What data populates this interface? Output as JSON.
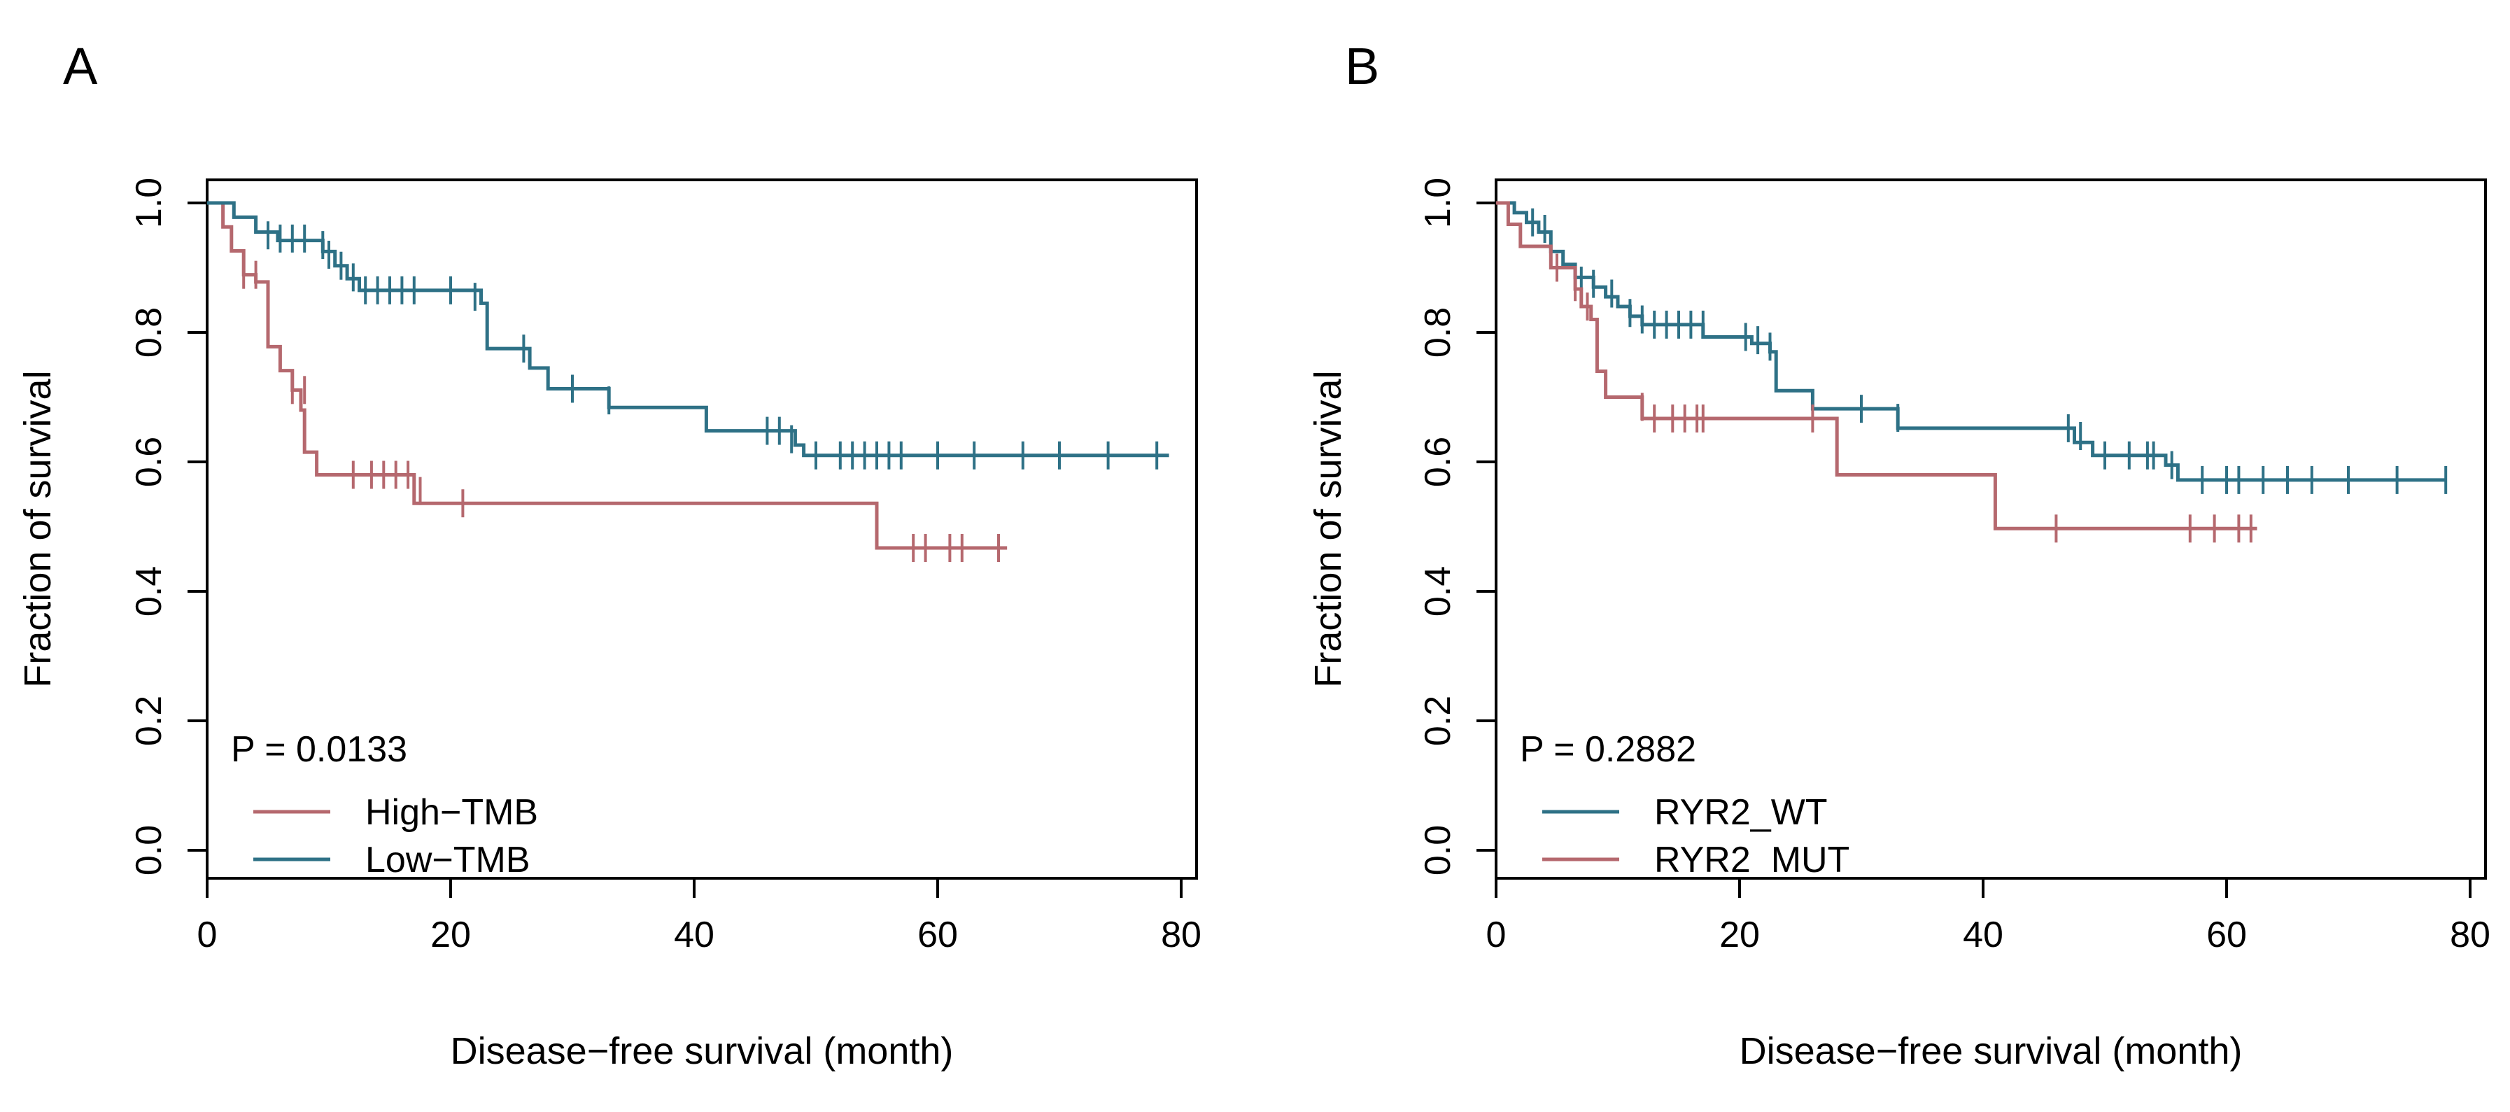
{
  "chart_data": [
    {
      "panel": "A",
      "type": "line",
      "title": "",
      "xlabel": "Disease−free survival (month)",
      "ylabel": "Fraction of survival",
      "xlim": [
        0,
        80
      ],
      "ylim": [
        0,
        1
      ],
      "xticks": [
        "0",
        "20",
        "40",
        "60",
        "80"
      ],
      "yticks": [
        "0.0",
        "0.2",
        "0.4",
        "0.6",
        "0.8",
        "1.0"
      ],
      "p_value": "P = 0.0133",
      "legend_placement": "bottom-left",
      "legend": [
        "High−TMB",
        "Low−TMB"
      ],
      "series": [
        {
          "name": "High−TMB",
          "color": "#B5686E",
          "steps": [
            [
              0,
              1.0
            ],
            [
              1.3,
              0.963
            ],
            [
              2,
              0.926
            ],
            [
              3,
              0.889
            ],
            [
              4,
              0.878
            ],
            [
              5,
              0.778
            ],
            [
              6,
              0.741
            ],
            [
              7,
              0.711
            ],
            [
              7.7,
              0.68
            ],
            [
              8,
              0.615
            ],
            [
              9,
              0.58
            ],
            [
              17,
              0.536
            ],
            [
              55,
              0.467
            ],
            [
              65.7,
              0.467
            ]
          ],
          "censors": [
            [
              3,
              0.889
            ],
            [
              4,
              0.889
            ],
            [
              7,
              0.711
            ],
            [
              8,
              0.711
            ],
            [
              12,
              0.58
            ],
            [
              13.5,
              0.58
            ],
            [
              14.5,
              0.58
            ],
            [
              15.5,
              0.58
            ],
            [
              16.5,
              0.58
            ],
            [
              17.5,
              0.555
            ],
            [
              21,
              0.536
            ],
            [
              58,
              0.467
            ],
            [
              59,
              0.467
            ],
            [
              61,
              0.467
            ],
            [
              62,
              0.467
            ],
            [
              65,
              0.467
            ]
          ]
        },
        {
          "name": "Low−TMB",
          "color": "#2E7186",
          "steps": [
            [
              0,
              1.0
            ],
            [
              2.2,
              0.978
            ],
            [
              4,
              0.955
            ],
            [
              5.8,
              0.942
            ],
            [
              9.5,
              0.925
            ],
            [
              10.5,
              0.903
            ],
            [
              11.5,
              0.883
            ],
            [
              12.5,
              0.865
            ],
            [
              22.5,
              0.845
            ],
            [
              23,
              0.775
            ],
            [
              26.5,
              0.745
            ],
            [
              28,
              0.713
            ],
            [
              33,
              0.684
            ],
            [
              41,
              0.648
            ],
            [
              48.3,
              0.626
            ],
            [
              49,
              0.61
            ],
            [
              79,
              0.61
            ]
          ],
          "censors": [
            [
              5,
              0.95
            ],
            [
              6,
              0.945
            ],
            [
              7,
              0.945
            ],
            [
              8,
              0.945
            ],
            [
              9.5,
              0.935
            ],
            [
              10,
              0.92
            ],
            [
              11,
              0.903
            ],
            [
              12,
              0.885
            ],
            [
              13,
              0.865
            ],
            [
              14,
              0.865
            ],
            [
              15,
              0.865
            ],
            [
              16,
              0.865
            ],
            [
              17,
              0.865
            ],
            [
              20,
              0.865
            ],
            [
              22,
              0.855
            ],
            [
              26,
              0.775
            ],
            [
              30,
              0.713
            ],
            [
              33,
              0.695
            ],
            [
              46,
              0.648
            ],
            [
              47,
              0.648
            ],
            [
              48,
              0.635
            ],
            [
              50,
              0.61
            ],
            [
              52,
              0.61
            ],
            [
              53,
              0.61
            ],
            [
              54,
              0.61
            ],
            [
              55,
              0.61
            ],
            [
              56,
              0.61
            ],
            [
              57,
              0.61
            ],
            [
              60,
              0.61
            ],
            [
              63,
              0.61
            ],
            [
              67,
              0.61
            ],
            [
              70,
              0.61
            ],
            [
              74,
              0.61
            ],
            [
              78,
              0.61
            ]
          ]
        }
      ]
    },
    {
      "panel": "B",
      "type": "line",
      "title": "",
      "xlabel": "Disease−free survival (month)",
      "ylabel": "Fraction of survival",
      "xlim": [
        0,
        80
      ],
      "ylim": [
        0,
        1
      ],
      "xticks": [
        "0",
        "20",
        "40",
        "60",
        "80"
      ],
      "yticks": [
        "0.0",
        "0.2",
        "0.4",
        "0.6",
        "0.8",
        "1.0"
      ],
      "p_value": "P = 0.2882",
      "legend_placement": "bottom-left",
      "legend": [
        "RYR2_WT",
        "RYR2_MUT"
      ],
      "series": [
        {
          "name": "RYR2_WT",
          "color": "#2E7186",
          "steps": [
            [
              0,
              1.0
            ],
            [
              1.5,
              0.985
            ],
            [
              2.5,
              0.97
            ],
            [
              3.5,
              0.955
            ],
            [
              4.5,
              0.925
            ],
            [
              5.5,
              0.905
            ],
            [
              6.5,
              0.885
            ],
            [
              8,
              0.87
            ],
            [
              9,
              0.855
            ],
            [
              10,
              0.84
            ],
            [
              11,
              0.825
            ],
            [
              12,
              0.812
            ],
            [
              17,
              0.793
            ],
            [
              21,
              0.783
            ],
            [
              22.5,
              0.77
            ],
            [
              23,
              0.71
            ],
            [
              26,
              0.682
            ],
            [
              33,
              0.652
            ],
            [
              47.5,
              0.63
            ],
            [
              49,
              0.61
            ],
            [
              55,
              0.595
            ],
            [
              56,
              0.572
            ],
            [
              78,
              0.572
            ]
          ],
          "censors": [
            [
              3,
              0.97
            ],
            [
              4,
              0.96
            ],
            [
              7,
              0.88
            ],
            [
              8,
              0.875
            ],
            [
              9.5,
              0.86
            ],
            [
              11,
              0.83
            ],
            [
              12,
              0.82
            ],
            [
              13,
              0.812
            ],
            [
              14,
              0.812
            ],
            [
              15,
              0.812
            ],
            [
              16,
              0.812
            ],
            [
              17,
              0.812
            ],
            [
              20.5,
              0.793
            ],
            [
              21.5,
              0.788
            ],
            [
              22.5,
              0.778
            ],
            [
              30,
              0.682
            ],
            [
              33,
              0.668
            ],
            [
              47,
              0.652
            ],
            [
              48,
              0.64
            ],
            [
              50,
              0.61
            ],
            [
              52,
              0.61
            ],
            [
              53.5,
              0.61
            ],
            [
              54,
              0.61
            ],
            [
              55.5,
              0.595
            ],
            [
              58,
              0.572
            ],
            [
              60,
              0.572
            ],
            [
              61,
              0.572
            ],
            [
              63,
              0.572
            ],
            [
              65,
              0.572
            ],
            [
              67,
              0.572
            ],
            [
              70,
              0.572
            ],
            [
              74,
              0.572
            ],
            [
              78,
              0.572
            ]
          ]
        },
        {
          "name": "RYR2_MUT",
          "color": "#B5686E",
          "steps": [
            [
              0,
              1.0
            ],
            [
              1,
              0.967
            ],
            [
              2,
              0.933
            ],
            [
              4.5,
              0.9
            ],
            [
              6.5,
              0.867
            ],
            [
              7,
              0.84
            ],
            [
              7.8,
              0.82
            ],
            [
              8.3,
              0.74
            ],
            [
              9,
              0.7
            ],
            [
              12,
              0.667
            ],
            [
              28,
              0.58
            ],
            [
              41,
              0.497
            ],
            [
              62.5,
              0.497
            ]
          ],
          "censors": [
            [
              5,
              0.9
            ],
            [
              6.5,
              0.87
            ],
            [
              7.5,
              0.84
            ],
            [
              12,
              0.685
            ],
            [
              13,
              0.667
            ],
            [
              14.5,
              0.667
            ],
            [
              15.5,
              0.667
            ],
            [
              16.5,
              0.667
            ],
            [
              17,
              0.667
            ],
            [
              26,
              0.667
            ],
            [
              46,
              0.497
            ],
            [
              57,
              0.497
            ],
            [
              59,
              0.497
            ],
            [
              61,
              0.497
            ],
            [
              62,
              0.497
            ]
          ]
        }
      ]
    }
  ]
}
